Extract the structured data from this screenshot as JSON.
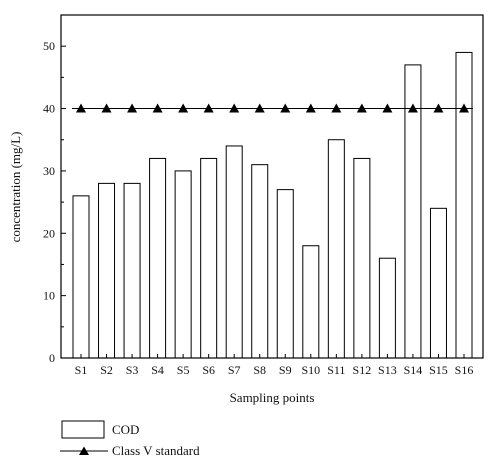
{
  "chart_data": {
    "type": "bar",
    "categories": [
      "S1",
      "S2",
      "S3",
      "S4",
      "S5",
      "S6",
      "S7",
      "S8",
      "S9",
      "S10",
      "S11",
      "S12",
      "S13",
      "S14",
      "S15",
      "S16"
    ],
    "series": [
      {
        "name": "COD",
        "type": "bar",
        "values": [
          26,
          28,
          28,
          32,
          30,
          32,
          34,
          31,
          27,
          18,
          35,
          32,
          16,
          47,
          24,
          49
        ]
      },
      {
        "name": "Class V standard",
        "type": "line",
        "marker": "triangle",
        "values": [
          40,
          40,
          40,
          40,
          40,
          40,
          40,
          40,
          40,
          40,
          40,
          40,
          40,
          40,
          40,
          40
        ]
      }
    ],
    "xlabel": "Sampling points",
    "ylabel": "concentration (mg/L)",
    "ylim": [
      0,
      55
    ],
    "yticks": [
      0,
      10,
      20,
      30,
      40,
      50
    ],
    "grid": false,
    "legend_position": "bottom-left",
    "bar_fill": "#ffffff",
    "stroke_color": "#000000"
  }
}
